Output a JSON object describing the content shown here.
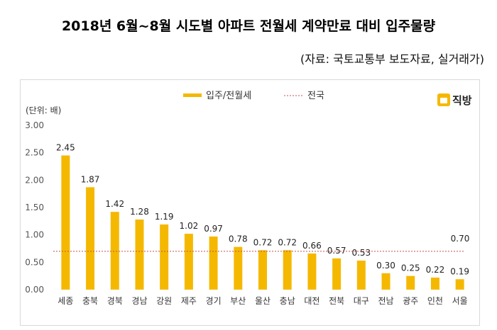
{
  "header": {
    "title": "2018년 6월~8월 시도별 아파트 전월세 계약만료 대비 입주물량",
    "source": "(자료: 국토교통부 보도자료, 실거래가)"
  },
  "brand": {
    "name": "직방",
    "icon": "house-logo-icon",
    "color": "#f5b800"
  },
  "chart_data": {
    "type": "bar",
    "unit_label": "(단위: 배)",
    "categories": [
      "세종",
      "충북",
      "경북",
      "경남",
      "강원",
      "제주",
      "경기",
      "부산",
      "울산",
      "충남",
      "대전",
      "전북",
      "대구",
      "전남",
      "광주",
      "인천",
      "서울"
    ],
    "series": [
      {
        "name": "입주/전월세",
        "values": [
          2.45,
          1.87,
          1.42,
          1.28,
          1.19,
          1.02,
          0.97,
          0.78,
          0.72,
          0.72,
          0.66,
          0.57,
          0.53,
          0.3,
          0.25,
          0.22,
          0.19
        ],
        "color": "#f5b800"
      }
    ],
    "reference_line": {
      "name": "전국",
      "value": 0.7,
      "label": "0.70",
      "color": "#c0504d"
    },
    "value_labels": [
      "2.45",
      "1.87",
      "1.42",
      "1.28",
      "1.19",
      "1.02",
      "0.97",
      "0.78",
      "0.72",
      "0.72",
      "0.66",
      "0.57",
      "0.53",
      "0.30",
      "0.25",
      "0.22",
      "0.19"
    ],
    "ylim": [
      0,
      3
    ],
    "yticks": [
      "0.00",
      "0.50",
      "1.00",
      "1.50",
      "2.00",
      "2.50",
      "3.00"
    ],
    "ytick_values": [
      0,
      0.5,
      1,
      1.5,
      2,
      2.5,
      3
    ],
    "grid": false,
    "legend": "top-center"
  }
}
